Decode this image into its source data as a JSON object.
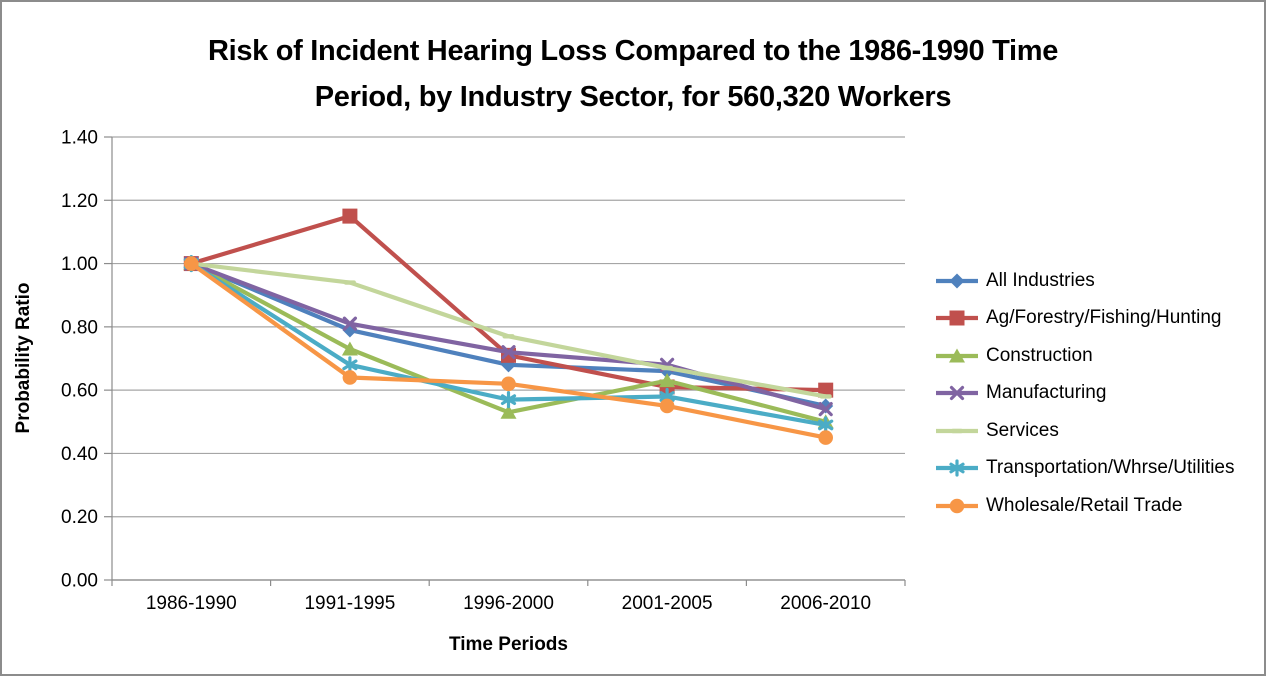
{
  "chart_data": {
    "type": "line",
    "title_line1": "Risk of Incident Hearing Loss Compared to the 1986-1990 Time",
    "title_line2": "Period, by Industry Sector, for 560,320 Workers",
    "xlabel": "Time Periods",
    "ylabel": "Probability Ratio",
    "categories": [
      "1986-1990",
      "1991-1995",
      "1996-2000",
      "2001-2005",
      "2006-2010"
    ],
    "ylim": [
      0.0,
      1.4
    ],
    "ytick_step": 0.2,
    "ytick_labels": [
      "0.00",
      "0.20",
      "0.40",
      "0.60",
      "0.80",
      "1.00",
      "1.20",
      "1.40"
    ],
    "grid": "horizontal-gridlines",
    "legend_position": "right",
    "series": [
      {
        "name": "All Industries",
        "color": "#4F81BD",
        "marker": "diamond",
        "values": [
          1.0,
          0.79,
          0.68,
          0.66,
          0.55
        ]
      },
      {
        "name": "Ag/Forestry/Fishing/Hunting",
        "color": "#C0504D",
        "marker": "square",
        "values": [
          1.0,
          1.15,
          0.71,
          0.61,
          0.6
        ]
      },
      {
        "name": "Construction",
        "color": "#9BBB59",
        "marker": "triangle",
        "values": [
          1.0,
          0.73,
          0.53,
          0.63,
          0.5
        ]
      },
      {
        "name": "Manufacturing",
        "color": "#8064A2",
        "marker": "x",
        "values": [
          1.0,
          0.81,
          0.72,
          0.68,
          0.54
        ]
      },
      {
        "name": "Services",
        "color": "#C3D69B",
        "marker": "dash",
        "values": [
          1.0,
          0.94,
          0.77,
          0.67,
          0.58
        ]
      },
      {
        "name": "Transportation/Whrse/Utilities",
        "color": "#4BACC6",
        "marker": "asterisk",
        "values": [
          1.0,
          0.68,
          0.57,
          0.58,
          0.49
        ]
      },
      {
        "name": "Wholesale/Retail Trade",
        "color": "#F79646",
        "marker": "circle",
        "values": [
          1.0,
          0.64,
          0.62,
          0.55,
          0.45
        ]
      }
    ]
  },
  "colors": {
    "axis": "#8c8c8c",
    "gridline": "#a6a6a6",
    "canvas_border": "#8c8c8c",
    "text": "#000000",
    "background": "#ffffff"
  }
}
